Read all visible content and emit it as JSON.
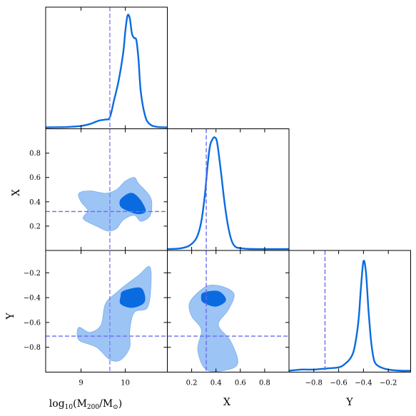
{
  "colors": {
    "line": "#0a6be0",
    "fill_inner": "#0a6be0",
    "fill_outer": "#9cc4f5",
    "marker": "#6b6bf0",
    "frame": "#000000"
  },
  "chart_data": {
    "type": "corner",
    "parameters": [
      "log10(M200/MO)",
      "X",
      "Y"
    ],
    "axis_labels": {
      "mass": {
        "base": "log",
        "sub1": "10",
        "open": "(M",
        "sub2": "200",
        "mid": "/M",
        "sub3": "⊙",
        "close": ")"
      },
      "x": "X",
      "y": "Y"
    },
    "ranges": {
      "mass": [
        8.2,
        10.95
      ],
      "x": [
        0.0,
        1.0
      ],
      "y": [
        -1.0,
        -0.02
      ]
    },
    "ticks": {
      "mass": [
        9,
        10
      ],
      "mass_labels": [
        "9",
        "10"
      ],
      "x": [
        0.2,
        0.4,
        0.6,
        0.8
      ],
      "x_labels": [
        "0.2",
        "0.4",
        "0.6",
        "0.8"
      ],
      "y": [
        -0.8,
        -0.6,
        -0.4,
        -0.2
      ],
      "y_labels": [
        "−0.8",
        "−0.6",
        "−0.4",
        "−0.2"
      ]
    },
    "marker_values": {
      "mass": 9.65,
      "x": 0.32,
      "y": -0.71
    },
    "marginals": {
      "mass": {
        "x": [
          8.2,
          8.6,
          8.8,
          9.0,
          9.2,
          9.4,
          9.55,
          9.65,
          9.75,
          9.85,
          9.95,
          10.0,
          10.05,
          10.1,
          10.15,
          10.2,
          10.25,
          10.3,
          10.35,
          10.45,
          10.55,
          10.7,
          10.95
        ],
        "density": [
          0.0,
          0.002,
          0.006,
          0.012,
          0.03,
          0.06,
          0.07,
          0.09,
          0.25,
          0.42,
          0.66,
          0.86,
          1.0,
          0.98,
          0.84,
          0.8,
          0.78,
          0.6,
          0.32,
          0.1,
          0.03,
          0.005,
          0.0
        ]
      },
      "x": {
        "x": [
          0.0,
          0.1,
          0.18,
          0.24,
          0.28,
          0.31,
          0.33,
          0.35,
          0.37,
          0.39,
          0.41,
          0.44,
          0.47,
          0.5,
          0.53,
          0.56,
          0.6,
          0.7,
          1.0
        ],
        "density": [
          0.0,
          0.005,
          0.03,
          0.1,
          0.25,
          0.5,
          0.74,
          0.92,
          0.98,
          1.0,
          0.95,
          0.7,
          0.42,
          0.2,
          0.07,
          0.02,
          0.008,
          0.0,
          0.0
        ]
      },
      "y": {
        "x": [
          -1.0,
          -0.9,
          -0.8,
          -0.7,
          -0.6,
          -0.55,
          -0.5,
          -0.47,
          -0.44,
          -0.42,
          -0.4,
          -0.38,
          -0.36,
          -0.34,
          -0.32,
          -0.3,
          -0.26,
          -0.2,
          -0.1,
          -0.02
        ],
        "density": [
          0.0,
          0.01,
          0.01,
          0.02,
          0.03,
          0.06,
          0.12,
          0.22,
          0.45,
          0.75,
          0.98,
          0.88,
          0.55,
          0.28,
          0.12,
          0.06,
          0.03,
          0.01,
          0.0,
          0.0
        ]
      }
    },
    "joint": {
      "x_vs_mass": {
        "outer": [
          [
            8.95,
            0.47
          ],
          [
            9.2,
            0.49
          ],
          [
            9.55,
            0.47
          ],
          [
            9.8,
            0.5
          ],
          [
            10.0,
            0.57
          ],
          [
            10.2,
            0.6
          ],
          [
            10.3,
            0.55
          ],
          [
            10.55,
            0.45
          ],
          [
            10.6,
            0.37
          ],
          [
            10.55,
            0.28
          ],
          [
            10.35,
            0.24
          ],
          [
            10.2,
            0.29
          ],
          [
            9.95,
            0.25
          ],
          [
            9.8,
            0.18
          ],
          [
            9.6,
            0.16
          ],
          [
            9.35,
            0.2
          ],
          [
            9.05,
            0.26
          ],
          [
            9.15,
            0.33
          ],
          [
            9.0,
            0.4
          ]
        ],
        "inner": [
          [
            9.9,
            0.42
          ],
          [
            10.1,
            0.47
          ],
          [
            10.25,
            0.45
          ],
          [
            10.4,
            0.38
          ],
          [
            10.45,
            0.32
          ],
          [
            10.3,
            0.3
          ],
          [
            10.1,
            0.32
          ],
          [
            9.9,
            0.36
          ]
        ]
      },
      "y_vs_mass": {
        "outer": [
          [
            9.2,
            -0.68
          ],
          [
            9.45,
            -0.62
          ],
          [
            9.55,
            -0.45
          ],
          [
            9.8,
            -0.36
          ],
          [
            10.0,
            -0.3
          ],
          [
            10.3,
            -0.22
          ],
          [
            10.55,
            -0.15
          ],
          [
            10.58,
            -0.3
          ],
          [
            10.5,
            -0.48
          ],
          [
            10.2,
            -0.52
          ],
          [
            10.1,
            -0.67
          ],
          [
            10.1,
            -0.8
          ],
          [
            9.9,
            -0.9
          ],
          [
            9.65,
            -0.9
          ],
          [
            9.35,
            -0.8
          ],
          [
            8.95,
            -0.74
          ],
          [
            8.95,
            -0.64
          ]
        ],
        "inner": [
          [
            9.95,
            -0.35
          ],
          [
            10.3,
            -0.32
          ],
          [
            10.42,
            -0.36
          ],
          [
            10.42,
            -0.44
          ],
          [
            10.15,
            -0.48
          ],
          [
            9.9,
            -0.45
          ],
          [
            9.9,
            -0.39
          ]
        ]
      },
      "y_vs_x": {
        "outer": [
          [
            0.18,
            -0.45
          ],
          [
            0.25,
            -0.36
          ],
          [
            0.35,
            -0.3
          ],
          [
            0.48,
            -0.32
          ],
          [
            0.55,
            -0.38
          ],
          [
            0.5,
            -0.5
          ],
          [
            0.42,
            -0.62
          ],
          [
            0.52,
            -0.75
          ],
          [
            0.58,
            -0.92
          ],
          [
            0.5,
            -0.98
          ],
          [
            0.32,
            -0.98
          ],
          [
            0.25,
            -0.82
          ],
          [
            0.28,
            -0.66
          ],
          [
            0.2,
            -0.55
          ]
        ],
        "inner": [
          [
            0.3,
            -0.36
          ],
          [
            0.42,
            -0.35
          ],
          [
            0.48,
            -0.42
          ],
          [
            0.4,
            -0.47
          ],
          [
            0.3,
            -0.44
          ],
          [
            0.28,
            -0.4
          ]
        ]
      }
    }
  }
}
